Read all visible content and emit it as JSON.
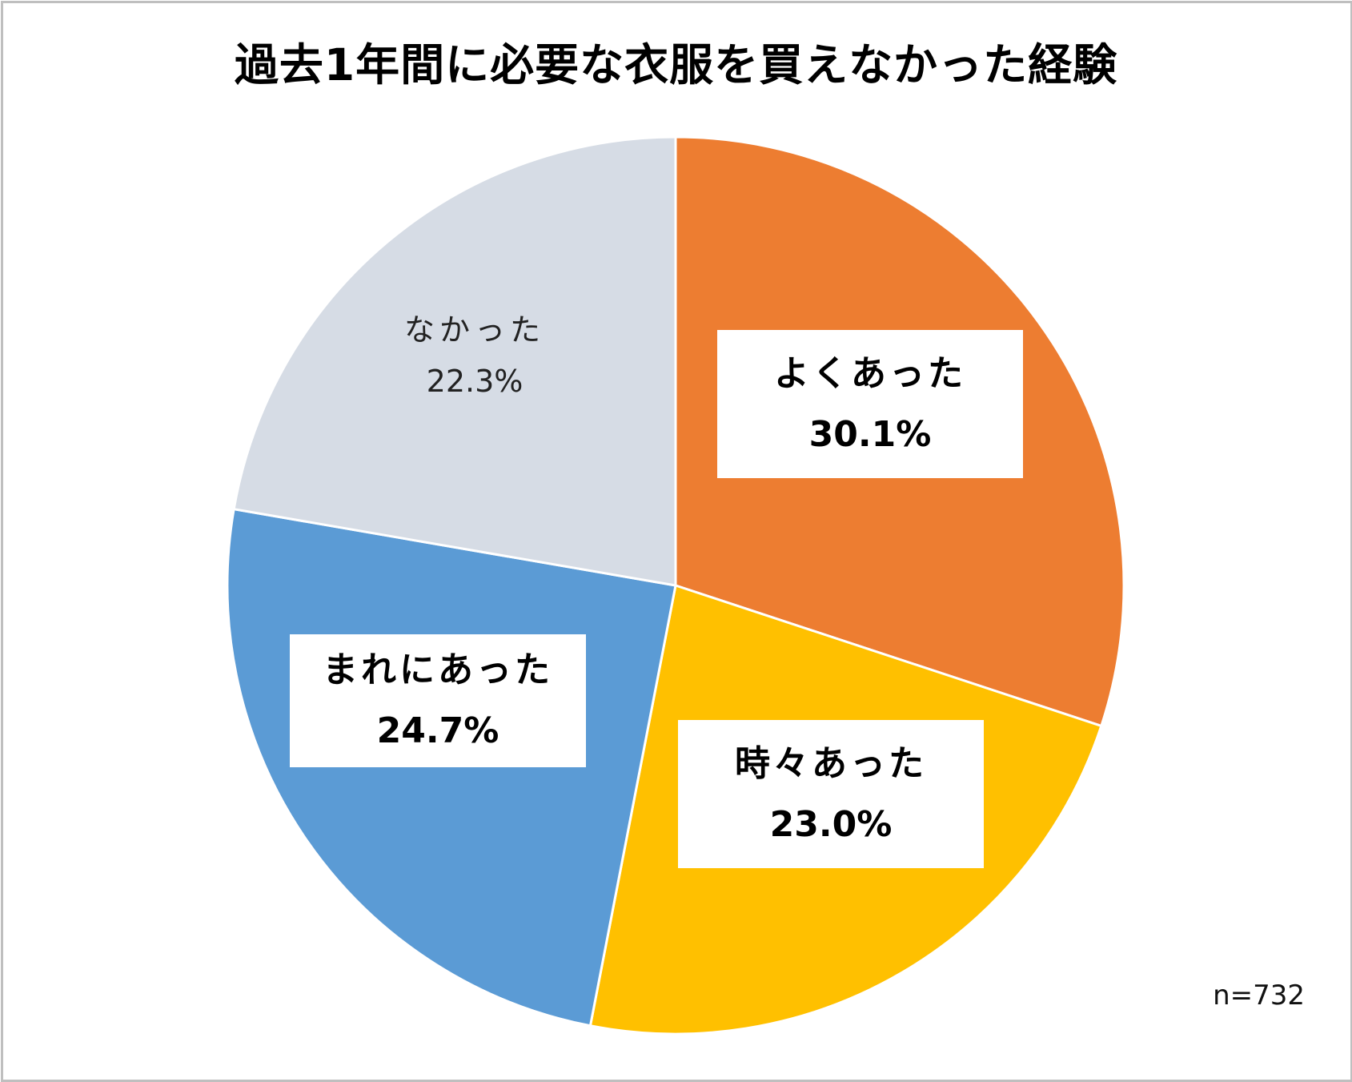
{
  "chart_data": {
    "type": "pie",
    "title": "過去1年間に必要な衣服を買えなかった経験",
    "categories": [
      "よくあった",
      "時々あった",
      "まれにあった",
      "なかった"
    ],
    "values": [
      30.1,
      23.0,
      24.7,
      22.3
    ],
    "unit": "%",
    "colors": [
      "#ED7D31",
      "#FFC000",
      "#5B9BD5",
      "#D6DCE5"
    ],
    "start_angle_deg": 0,
    "direction": "clockwise",
    "legend": "none",
    "sample_size_note": "n=732"
  },
  "title": "過去1年間に必要な衣服を買えなかった経験",
  "labels": [
    {
      "category": "よくあった",
      "percent": "30.1%"
    },
    {
      "category": "時々あった",
      "percent": "23.0%"
    },
    {
      "category": "まれにあった",
      "percent": "24.7%"
    },
    {
      "category": "なかった",
      "percent": "22.3%"
    }
  ],
  "note": "n=732"
}
